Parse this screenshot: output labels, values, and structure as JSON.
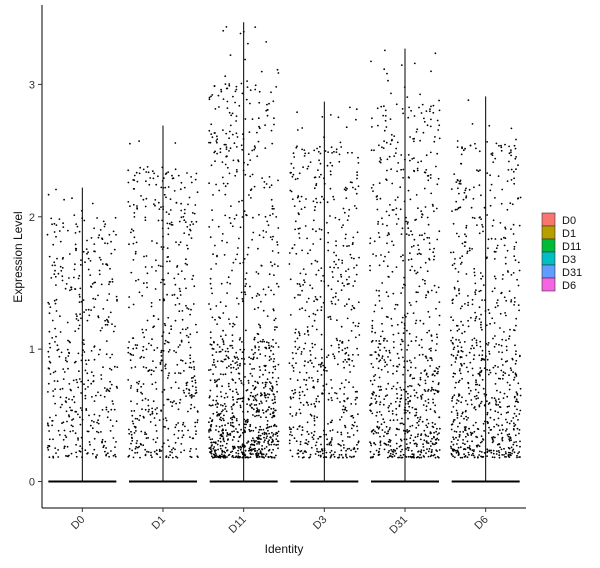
{
  "chart_data": {
    "type": "violin",
    "title": "",
    "xlabel": "Identity",
    "ylabel": "Expression Level",
    "ylim": [
      -0.2,
      3.6
    ],
    "yticks": [
      0,
      1,
      2,
      3
    ],
    "categories": [
      "D0",
      "D1",
      "D11",
      "D3",
      "D31",
      "D6"
    ],
    "max_values": [
      2.22,
      2.69,
      3.47,
      2.87,
      3.27,
      2.91
    ],
    "zero_fraction_note": "",
    "legend": {
      "position": "right",
      "items": [
        {
          "label": "D0",
          "color": "#F8766D"
        },
        {
          "label": "D1",
          "color": "#B79F00"
        },
        {
          "label": "D11",
          "color": "#00BA38"
        },
        {
          "label": "D3",
          "color": "#00BFC4"
        },
        {
          "label": "D31",
          "color": "#619CFF"
        },
        {
          "label": "D6",
          "color": "#F564E3"
        }
      ]
    },
    "point_density": [
      0.35,
      0.45,
      1.0,
      0.55,
      0.75,
      0.7
    ],
    "point_color": "#000000",
    "grid": false
  }
}
